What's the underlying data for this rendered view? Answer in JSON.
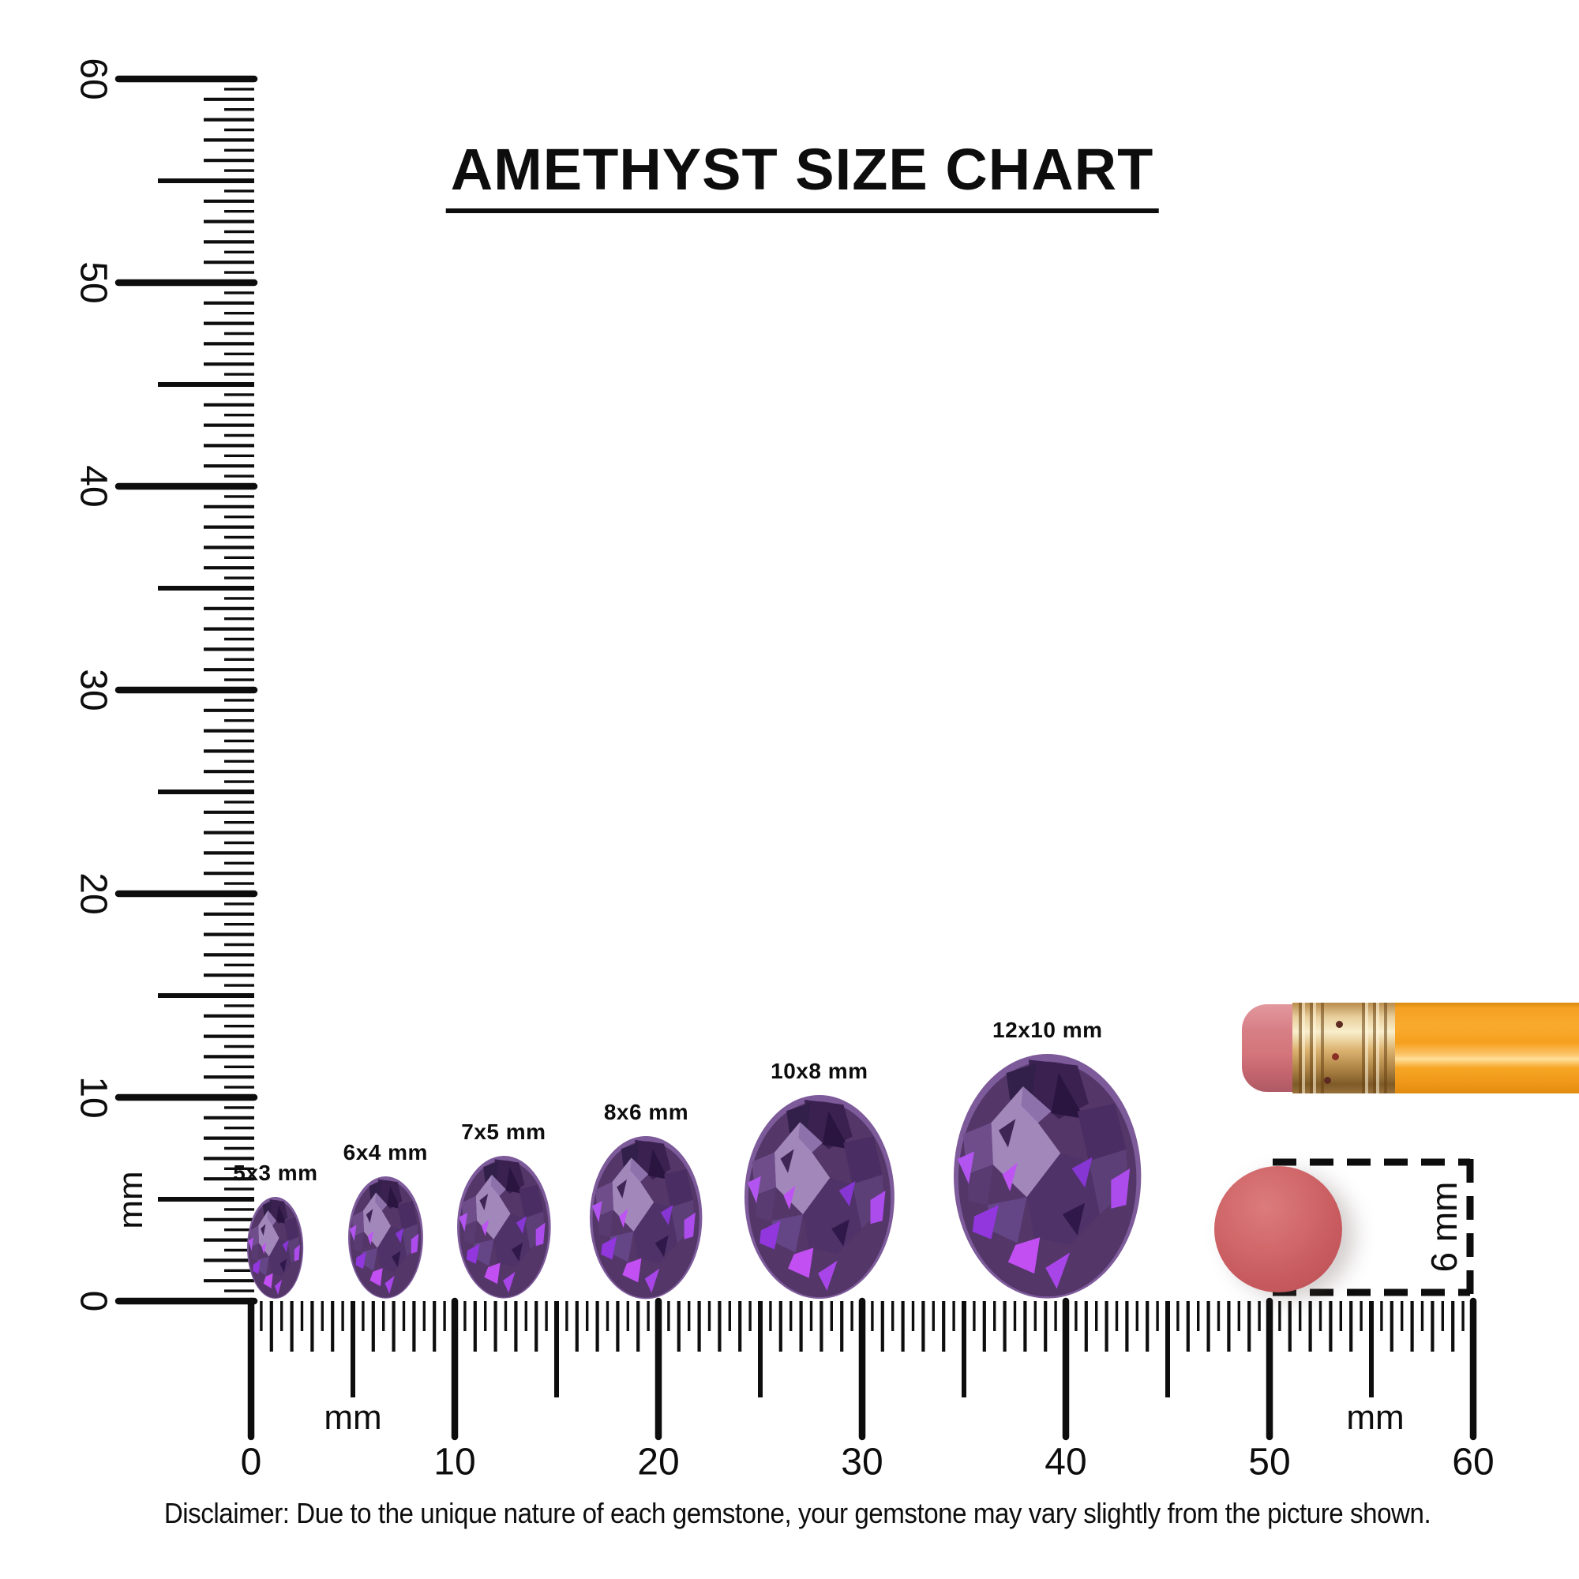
{
  "title": "AMETHYST SIZE CHART",
  "disclaimer": "Disclaimer: Due to the unique nature of each gemstone, your gemstone may vary slightly from the picture shown.",
  "rulers": {
    "unit_label": "mm",
    "min_mm": 0,
    "max_mm": 60,
    "number_labels": [
      "0",
      "10",
      "20",
      "30",
      "40",
      "50",
      "60"
    ]
  },
  "gems": [
    {
      "label": "5x3 mm",
      "long_mm": 5,
      "wide_mm": 3,
      "position_mm": 1.2
    },
    {
      "label": "6x4 mm",
      "long_mm": 6,
      "wide_mm": 4,
      "position_mm": 6.6
    },
    {
      "label": "7x5 mm",
      "long_mm": 7,
      "wide_mm": 5,
      "position_mm": 12.4
    },
    {
      "label": "8x6 mm",
      "long_mm": 8,
      "wide_mm": 6,
      "position_mm": 19.4
    },
    {
      "label": "10x8 mm",
      "long_mm": 10,
      "wide_mm": 8,
      "position_mm": 27.9
    },
    {
      "label": "12x10 mm",
      "long_mm": 12,
      "wide_mm": 10,
      "position_mm": 39.1
    }
  ],
  "reference": {
    "disc_label": "6 mm",
    "disc_diameter_mm": 6,
    "pencil_description": "pencil with eraser"
  },
  "colors": {
    "ink": "#0d0d0d",
    "background": "#ffffff",
    "gem_base": "#543669",
    "gem_rim": "#7d5a9a",
    "gem_table": "#a287bb",
    "gem_flash": "#b254ef",
    "pencil_body": "#f8a21f",
    "pencil_ferrule": "#d9b06c",
    "pencil_eraser": "#d4767c",
    "eraser_disc": "#cb585c"
  },
  "chart_data": {
    "type": "table",
    "title": "AMETHYST SIZE CHART",
    "unit": "mm",
    "ruler_range_mm": [
      0,
      60
    ],
    "ruler_tick_step_mm": 0.5,
    "oval_gem_sizes_mm": [
      [
        5,
        3
      ],
      [
        6,
        4
      ],
      [
        7,
        5
      ],
      [
        8,
        6
      ],
      [
        10,
        8
      ],
      [
        12,
        10
      ]
    ],
    "gem_center_positions_mm": [
      1.2,
      6.6,
      12.4,
      19.4,
      27.9,
      39.1
    ],
    "reference_disc_mm": 6
  }
}
